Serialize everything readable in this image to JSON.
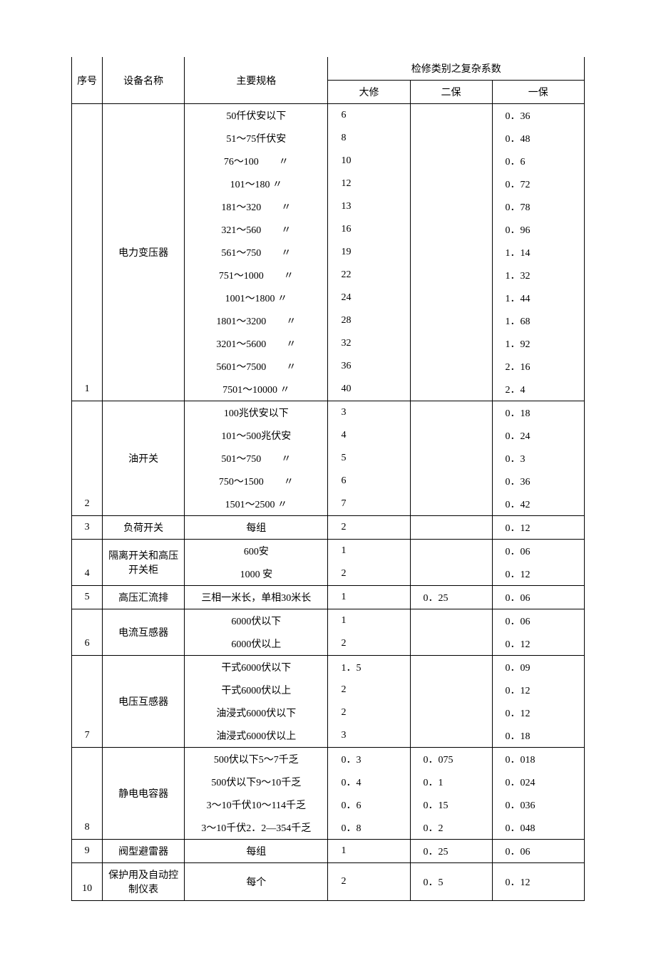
{
  "header": {
    "seq": "序号",
    "name": "设备名称",
    "spec": "主要规格",
    "group": "检修类别之复杂系数",
    "c1": "大修",
    "c2": "二保",
    "c3": "一保"
  },
  "groups": [
    {
      "seq": "1",
      "name": "电力变压器",
      "rows": [
        {
          "spec": "50仟伏安以下",
          "v1": "6",
          "v2": "",
          "v3": "0．36"
        },
        {
          "spec": "51～75仟伏安",
          "v1": "8",
          "v2": "",
          "v3": "0．48"
        },
        {
          "spec": "76～100　　〃",
          "v1": "10",
          "v2": "",
          "v3": "0．6"
        },
        {
          "spec": "101～180 〃",
          "v1": "12",
          "v2": "",
          "v3": "0．72"
        },
        {
          "spec": "181～320　　〃",
          "v1": "13",
          "v2": "",
          "v3": "0．78"
        },
        {
          "spec": "321～560　　〃",
          "v1": "16",
          "v2": "",
          "v3": "0．96"
        },
        {
          "spec": "561～750　　〃",
          "v1": "19",
          "v2": "",
          "v3": "1．14"
        },
        {
          "spec": "751～1000　　〃",
          "v1": "22",
          "v2": "",
          "v3": "1．32"
        },
        {
          "spec": "1001～1800 〃",
          "v1": "24",
          "v2": "",
          "v3": "1．44"
        },
        {
          "spec": "1801～3200　　〃",
          "v1": "28",
          "v2": "",
          "v3": "1．68"
        },
        {
          "spec": "3201～5600　　〃",
          "v1": "32",
          "v2": "",
          "v3": "1．92"
        },
        {
          "spec": "5601～7500　　〃",
          "v1": "36",
          "v2": "",
          "v3": "2．16"
        },
        {
          "spec": "7501～10000 〃",
          "v1": "40",
          "v2": "",
          "v3": "2．4"
        }
      ]
    },
    {
      "seq": "2",
      "name": "油开关",
      "rows": [
        {
          "spec": "100兆伏安以下",
          "v1": "3",
          "v2": "",
          "v3": "0．18"
        },
        {
          "spec": "101～500兆伏安",
          "v1": "4",
          "v2": "",
          "v3": "0．24"
        },
        {
          "spec": "501～750　　〃",
          "v1": "5",
          "v2": "",
          "v3": "0．3"
        },
        {
          "spec": "750～1500　　〃",
          "v1": "6",
          "v2": "",
          "v3": "0．36"
        },
        {
          "spec": "1501～2500 〃",
          "v1": "7",
          "v2": "",
          "v3": "0．42"
        }
      ]
    },
    {
      "seq": "3",
      "name": "负荷开关",
      "rows": [
        {
          "spec": "每组",
          "v1": "2",
          "v2": "",
          "v3": "0．12"
        }
      ]
    },
    {
      "seq": "4",
      "name": "隔离开关和高压开关柜",
      "rows": [
        {
          "spec": "600安",
          "v1": "1",
          "v2": "",
          "v3": "0．06"
        },
        {
          "spec": "1000 安",
          "v1": "2",
          "v2": "",
          "v3": "0．12"
        }
      ]
    },
    {
      "seq": "5",
      "name": "高压汇流排",
      "rows": [
        {
          "spec": "三相一米长，单相30米长",
          "v1": "1",
          "v2": "0．25",
          "v3": "0．06"
        }
      ]
    },
    {
      "seq": "6",
      "name": "电流互感器",
      "rows": [
        {
          "spec": "6000伏以下",
          "v1": "1",
          "v2": "",
          "v3": "0．06"
        },
        {
          "spec": "6000伏以上",
          "v1": "2",
          "v2": "",
          "v3": "0．12"
        }
      ]
    },
    {
      "seq": "7",
      "name": "电压互感器",
      "rows": [
        {
          "spec": "干式6000伏以下",
          "v1": "1．5",
          "v2": "",
          "v3": "0．09"
        },
        {
          "spec": "干式6000伏以上",
          "v1": "2",
          "v2": "",
          "v3": "0．12"
        },
        {
          "spec": "油浸式6000伏以下",
          "v1": "2",
          "v2": "",
          "v3": "0．12"
        },
        {
          "spec": "油浸式6000伏以上",
          "v1": "3",
          "v2": "",
          "v3": "0．18"
        }
      ]
    },
    {
      "seq": "8",
      "name": "静电电容器",
      "rows": [
        {
          "spec": "500伏以下5～7千乏",
          "v1": "0．3",
          "v2": "0．075",
          "v3": "0．018"
        },
        {
          "spec": "500伏以下9～10千乏",
          "v1": "0．4",
          "v2": "0．1",
          "v3": "0．024"
        },
        {
          "spec": "3～10千伏10～114千乏",
          "v1": "0．6",
          "v2": "0．15",
          "v3": "0．036"
        },
        {
          "spec": "3～10千伏2．2—354千乏",
          "v1": "0．8",
          "v2": "0．2",
          "v3": "0．048"
        }
      ]
    },
    {
      "seq": "9",
      "name": "阀型避雷器",
      "rows": [
        {
          "spec": "每组",
          "v1": "1",
          "v2": "0．25",
          "v3": "0．06"
        }
      ]
    },
    {
      "seq": "10",
      "name": "保护用及自动控制仪表",
      "rows": [
        {
          "spec": "每个",
          "v1": "2",
          "v2": "0．5",
          "v3": "0．12"
        }
      ]
    }
  ]
}
